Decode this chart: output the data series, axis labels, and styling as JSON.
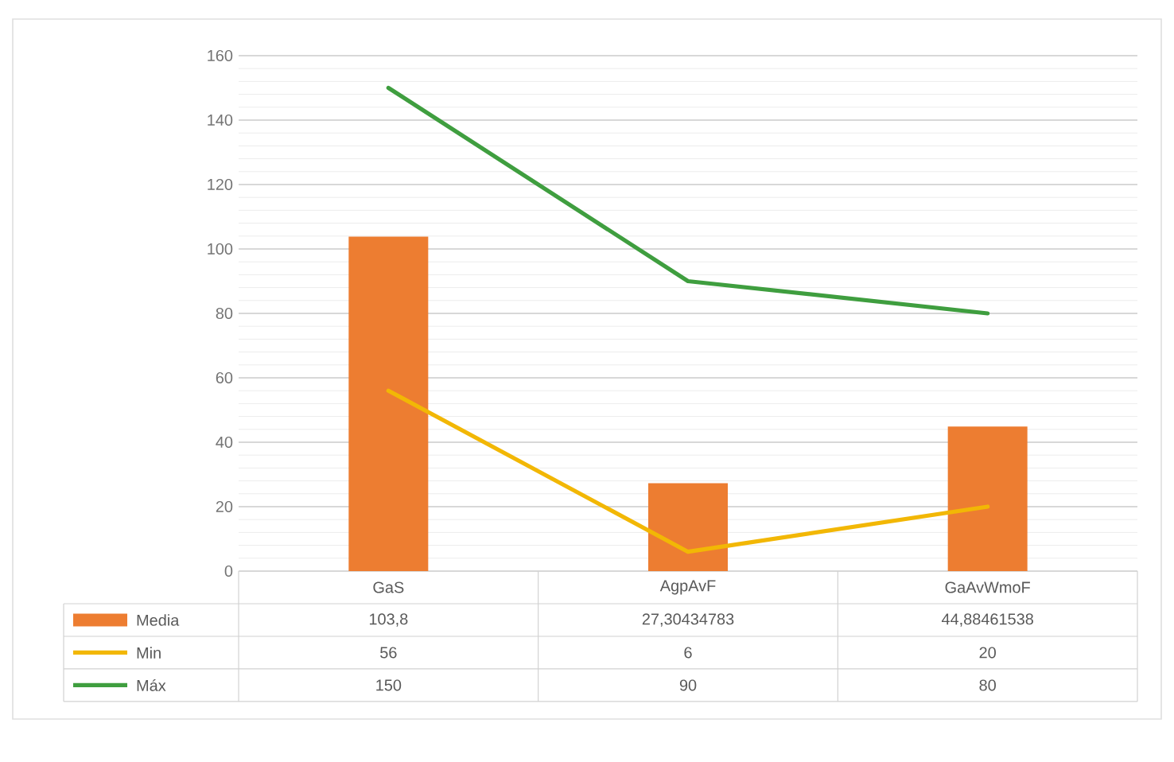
{
  "chart_data": {
    "type": "bar",
    "categories": [
      "GaS",
      "AgpAvF",
      "GaAvWmoF"
    ],
    "series": [
      {
        "name": "Media",
        "color": "#ed7d31",
        "values": [
          103.8,
          27.30434783,
          44.88461538
        ],
        "value_labels": [
          "103,8",
          "27,30434783",
          "44,88461538"
        ]
      },
      {
        "name": "Min",
        "type": "line",
        "color": "#f2b705",
        "values": [
          56,
          6,
          20
        ],
        "value_labels": [
          "56",
          "6",
          "20"
        ]
      },
      {
        "name": "Máx",
        "type": "line",
        "color": "#3f9e3f",
        "values": [
          150,
          90,
          80
        ],
        "value_labels": [
          "150",
          "90",
          "80"
        ]
      }
    ],
    "ylim": [
      0,
      160
    ],
    "yticks": [
      0,
      20,
      40,
      60,
      80,
      100,
      120,
      140,
      160
    ],
    "grid": "y",
    "legend": "bottom",
    "marker": "none"
  }
}
